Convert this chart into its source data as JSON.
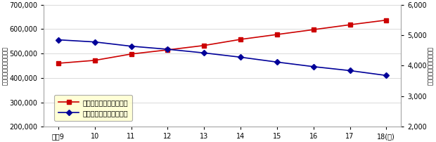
{
  "years": [
    "平戈9",
    "10",
    "11",
    "12",
    "13",
    "14",
    "15",
    "16",
    "17",
    "18(年)"
  ],
  "furugyo": [
    460000,
    472000,
    498000,
    515000,
    533000,
    558000,
    578000,
    598000,
    618000,
    637000
  ],
  "shichiya": [
    4850,
    4780,
    4640,
    4540,
    4420,
    4280,
    4120,
    3970,
    3840,
    3680
  ],
  "furugyo_color": "#cc0000",
  "shichiya_color": "#000099",
  "background_color": "#ffffff",
  "plot_bg": "#ffffff",
  "left_ylim": [
    200000,
    700000
  ],
  "right_ylim": [
    2000,
    6000
  ],
  "left_yticks": [
    200000,
    300000,
    400000,
    500000,
    600000,
    700000
  ],
  "right_yticks": [
    2000,
    3000,
    4000,
    5000,
    6000
  ],
  "left_ylabel": "（業者）古物営業許可数",
  "right_ylabel": "貳屋営業許可数（業者）",
  "legend_furugyo": "古物営業許可数（業者）",
  "legend_shichiya": "質屋営業許可数（業者）",
  "legend_bg": "#ffffcc",
  "marker_furugyo": "s",
  "marker_shichiya": "D",
  "grid_color": "#cccccc",
  "tick_fontsize": 7,
  "ylabel_fontsize": 6,
  "legend_fontsize": 7
}
